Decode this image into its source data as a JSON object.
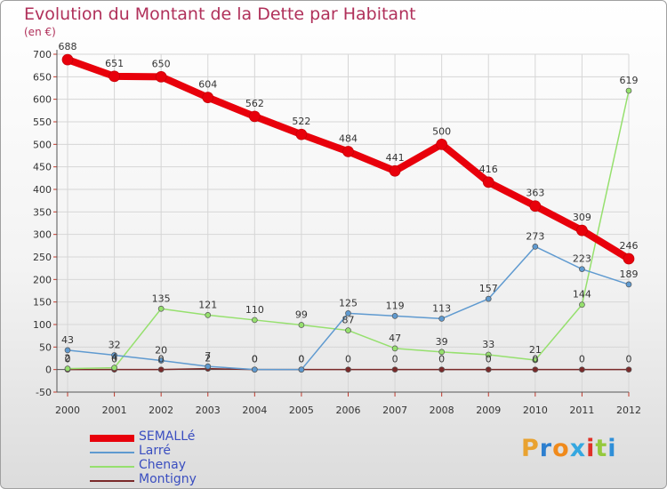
{
  "chart_data": {
    "type": "line",
    "title": "Evolution du Montant de la Dette par Habitant",
    "subtitle": "(en €)",
    "categories": [
      "2000",
      "2001",
      "2002",
      "2003",
      "2004",
      "2005",
      "2006",
      "2007",
      "2008",
      "2009",
      "2010",
      "2011",
      "2012"
    ],
    "ylim": [
      -50,
      700
    ],
    "yticks": [
      -50,
      0,
      50,
      100,
      150,
      200,
      250,
      300,
      350,
      400,
      450,
      500,
      550,
      600,
      650,
      700
    ],
    "grid": true,
    "legend_position": "bottom-left",
    "series": [
      {
        "name": "SEMALLé",
        "color": "#e8000b",
        "width": 8,
        "values": [
          688,
          651,
          650,
          604,
          562,
          522,
          484,
          441,
          500,
          416,
          363,
          309,
          246
        ]
      },
      {
        "name": "Larré",
        "color": "#5f9ad0",
        "width": 1.5,
        "values": [
          43,
          32,
          20,
          7,
          0,
          0,
          125,
          119,
          113,
          157,
          273,
          223,
          189
        ]
      },
      {
        "name": "Chenay",
        "color": "#96e06e",
        "width": 1.5,
        "values": [
          2,
          4,
          135,
          121,
          110,
          99,
          87,
          47,
          39,
          33,
          21,
          144,
          619
        ]
      },
      {
        "name": "Montigny",
        "color": "#7a2a2a",
        "width": 1.5,
        "values": [
          0,
          0,
          0,
          2,
          0,
          0,
          0,
          0,
          0,
          0,
          0,
          0,
          0
        ]
      }
    ],
    "data_labels": [
      [
        688,
        651,
        650,
        604,
        562,
        522,
        484,
        441,
        500,
        416,
        363,
        309,
        246
      ],
      [
        43,
        32,
        20,
        7,
        0,
        0,
        125,
        119,
        113,
        157,
        273,
        223,
        189
      ],
      [
        2,
        4,
        135,
        121,
        110,
        99,
        87,
        47,
        39,
        33,
        21,
        144,
        619
      ],
      [
        0,
        0,
        0,
        2,
        0,
        0,
        0,
        0,
        0,
        0,
        0,
        0,
        0
      ]
    ]
  },
  "brand": {
    "text": "Proxiti",
    "colors": [
      "#e9a230",
      "#2d7fcf",
      "#f08a1c",
      "#35a7e0",
      "#e03127",
      "#95c93d",
      "#2f8fd8"
    ]
  }
}
